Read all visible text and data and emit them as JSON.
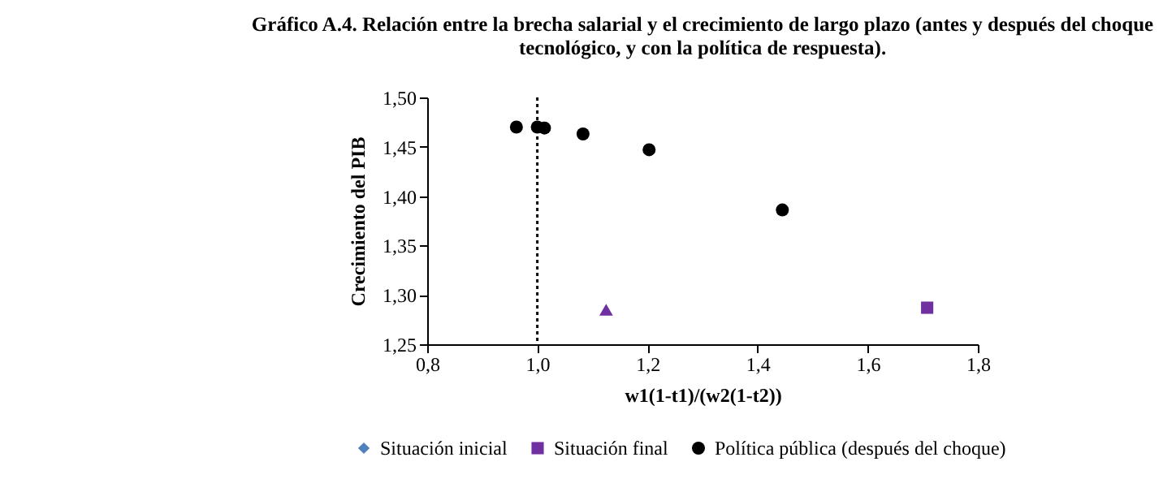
{
  "chart_data": {
    "type": "scatter",
    "title": "Gráfico A.4. Relación entre la brecha salarial y el crecimiento de largo plazo (antes y después del choque tecnológico, y con la política de respuesta).",
    "xlabel": "w1(1-t1)/(w2(1-t2))",
    "ylabel": "Crecimiento del PIB",
    "xlim": [
      0.8,
      1.8
    ],
    "xticks": [
      {
        "value": 0.8,
        "label": "0,8"
      },
      {
        "value": 1.0,
        "label": "1,0"
      },
      {
        "value": 1.2,
        "label": "1,2"
      },
      {
        "value": 1.4,
        "label": "1,4"
      },
      {
        "value": 1.6,
        "label": "1,6"
      },
      {
        "value": 1.8,
        "label": "1,8"
      }
    ],
    "ylim": [
      1.25,
      1.5
    ],
    "yticks": [
      {
        "value": 1.25,
        "label": "1,25"
      },
      {
        "value": 1.3,
        "label": "1,30"
      },
      {
        "value": 1.35,
        "label": "1,35"
      },
      {
        "value": 1.4,
        "label": "1,40"
      },
      {
        "value": 1.45,
        "label": "1,45"
      },
      {
        "value": 1.5,
        "label": "1,50"
      }
    ],
    "grid": false,
    "legend": "bottom",
    "ref_lines": [
      {
        "axis": "x",
        "value": 1.0,
        "color": "#000000",
        "line_style": "dotted"
      }
    ],
    "series": [
      {
        "name": "Situación inicial",
        "color": "#4f81bd",
        "marker": "diamond",
        "values": [
          null
        ]
      },
      {
        "name": "Situación final",
        "color": "#7030a0",
        "marker": "square",
        "x": [
          1.708
        ],
        "values": [
          1.287
        ]
      },
      {
        "name": "Política pública (después del choque)",
        "color": "#000000",
        "marker": "circle",
        "x": [
          0.962,
          1.0,
          1.013,
          1.083,
          1.203,
          1.445
        ],
        "values": [
          1.47,
          1.47,
          1.469,
          1.463,
          1.447,
          1.386
        ]
      },
      {
        "color": "#7030a0",
        "marker": "triangle",
        "x": [
          1.125
        ],
        "values": [
          1.285
        ]
      }
    ]
  }
}
